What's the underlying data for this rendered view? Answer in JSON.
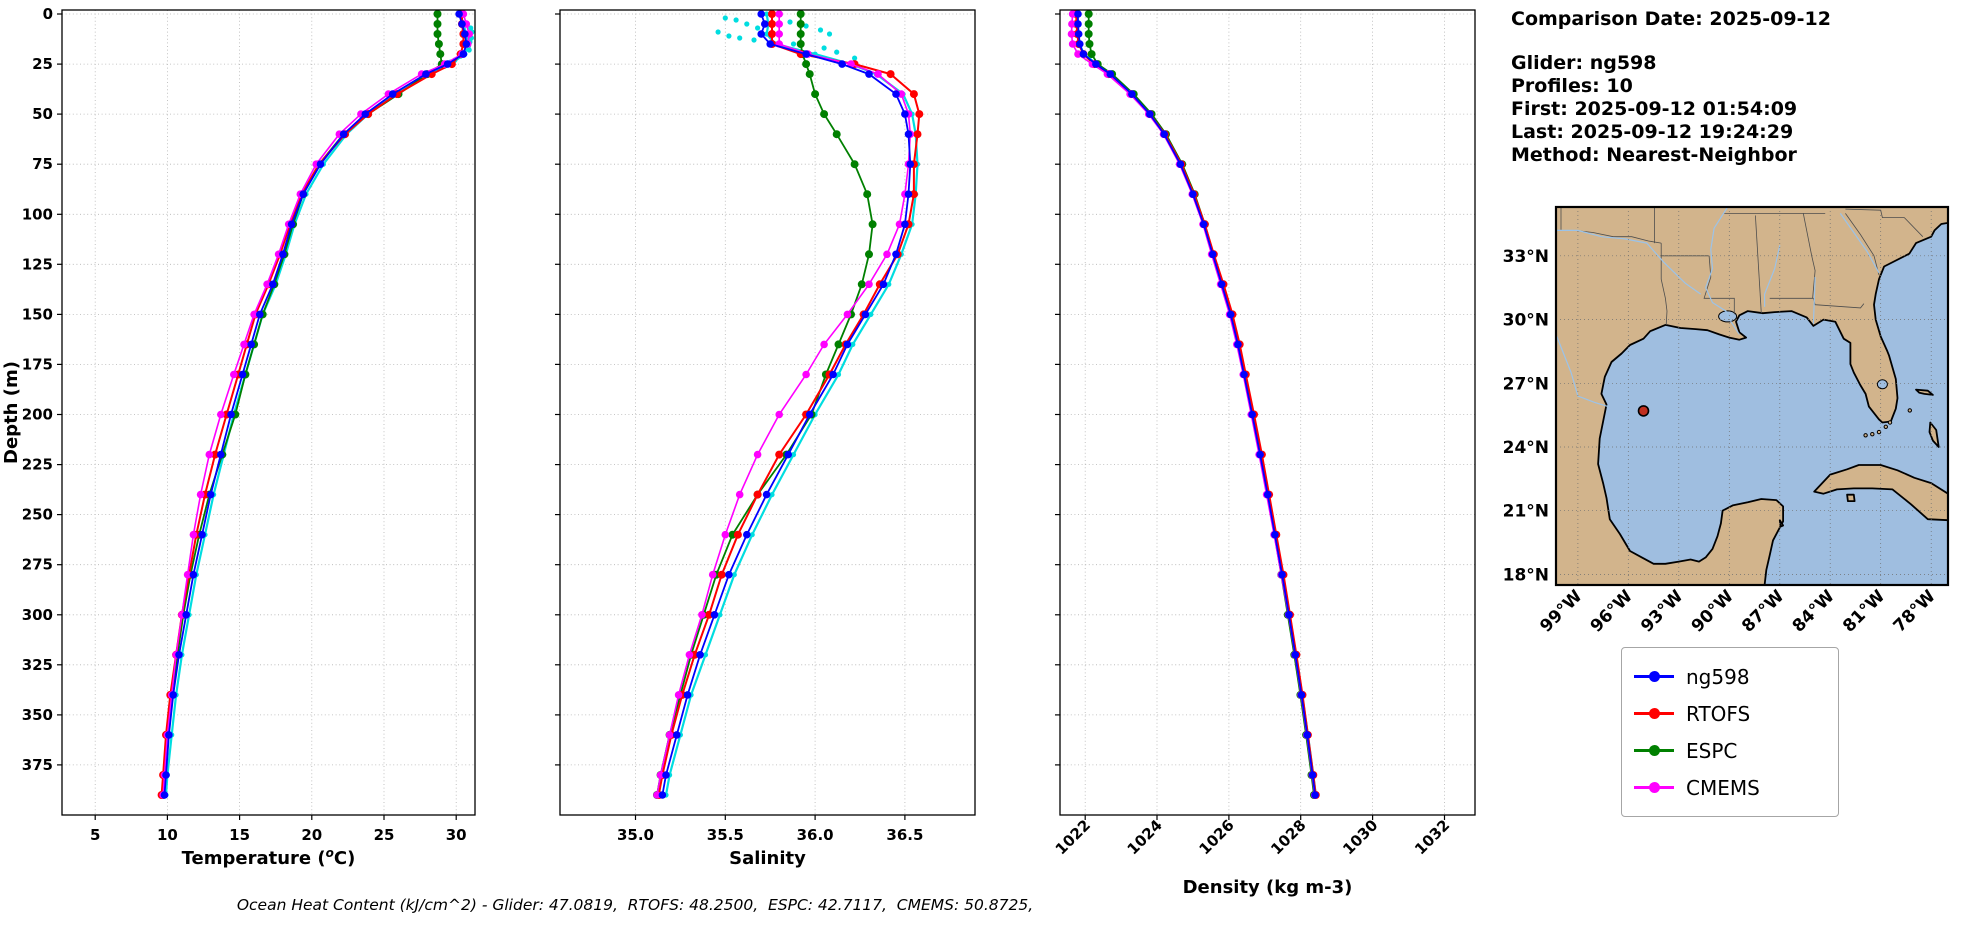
{
  "info": {
    "comparison_date": "Comparison Date: 2025-09-12",
    "glider": "Glider: ng598",
    "profiles": "Profiles: 10",
    "first": "First: 2025-09-12 01:54:09",
    "last": "Last: 2025-09-12 19:24:29",
    "method": "Method: Nearest-Neighbor"
  },
  "legend": {
    "items": [
      {
        "label": "ng598",
        "color": "#0000ff"
      },
      {
        "label": "RTOFS",
        "color": "#ff0000"
      },
      {
        "label": "ESPC",
        "color": "#008000"
      },
      {
        "label": "CMEMS",
        "color": "#ff00ff"
      }
    ]
  },
  "caption": {
    "text": "Ocean Heat Content (kJ/cm^2) - Glider: 47.0819,  RTOFS: 48.2500,  ESPC: 42.7117,  CMEMS: 50.8725,"
  },
  "ocean_heat_content": {
    "units": "kJ/cm^2",
    "glider": 47.0819,
    "rtofs": 48.25,
    "espc": 42.7117,
    "cmems": 50.8725
  },
  "map": {
    "extent": {
      "lon_min": -100.3,
      "lon_max": -77.0,
      "lat_min": 17.5,
      "lat_max": 35.3
    },
    "lat_ticks": [
      {
        "v": 33,
        "label": "33°N"
      },
      {
        "v": 30,
        "label": "30°N"
      },
      {
        "v": 27,
        "label": "27°N"
      },
      {
        "v": 24,
        "label": "24°N"
      },
      {
        "v": 21,
        "label": "21°N"
      },
      {
        "v": 18,
        "label": "18°N"
      }
    ],
    "lon_ticks": [
      {
        "v": -99,
        "label": "99°W"
      },
      {
        "v": -96,
        "label": "96°W"
      },
      {
        "v": -93,
        "label": "93°W"
      },
      {
        "v": -90,
        "label": "90°W"
      },
      {
        "v": -87,
        "label": "87°W"
      },
      {
        "v": -84,
        "label": "84°W"
      },
      {
        "v": -81,
        "label": "81°W"
      },
      {
        "v": -78,
        "label": "78°W"
      }
    ],
    "colors": {
      "land": "#d2b48c",
      "ocean": "#9fbee0",
      "coast": "#000000",
      "river": "#9cc3e8",
      "border": "#4d4d4d"
    },
    "marker": {
      "lon": -95.1,
      "lat": 25.7,
      "color": "#c03020",
      "edge": "#000000"
    }
  },
  "chart_data": [
    {
      "type": "line",
      "name": "temperature-profile",
      "xlabel_pre": "Temperature (",
      "xlabel_sup": "o",
      "xlabel_post": "C)",
      "ylabel": "Depth (m)",
      "grid": true,
      "xlim": [
        2.7,
        31.3
      ],
      "ylim": [
        0,
        400
      ],
      "xticks": [
        {
          "v": 5,
          "label": "5"
        },
        {
          "v": 10,
          "label": "10"
        },
        {
          "v": 15,
          "label": "15"
        },
        {
          "v": 20,
          "label": "20"
        },
        {
          "v": 25,
          "label": "25"
        },
        {
          "v": 30,
          "label": "30"
        }
      ],
      "yticks": [
        0,
        25,
        50,
        75,
        100,
        125,
        150,
        175,
        200,
        225,
        250,
        275,
        300,
        325,
        350,
        375
      ],
      "x": [
        0,
        5,
        10,
        15,
        20,
        25,
        30,
        40,
        50,
        60,
        75,
        90,
        105,
        120,
        135,
        150,
        165,
        180,
        200,
        220,
        240,
        260,
        280,
        300,
        320,
        340,
        360,
        380,
        390
      ],
      "series": [
        {
          "name": "glider-raw",
          "color": "#00dde0",
          "z": 1,
          "r": 2.6,
          "lw": 2.2,
          "values": [
            30.3,
            30.5,
            30.7,
            30.8,
            30.6,
            29.6,
            28.1,
            25.8,
            23.9,
            22.4,
            20.8,
            19.6,
            18.8,
            18.2,
            17.5,
            16.6,
            16.0,
            15.4,
            14.6,
            13.9,
            13.2,
            12.6,
            12.0,
            11.5,
            11.0,
            10.6,
            10.3,
            10.0,
            9.9
          ],
          "points": [
            [
              7,
              31.0
            ],
            [
              9,
              31.1
            ],
            [
              12,
              31.05
            ],
            [
              14,
              30.95
            ],
            [
              16,
              30.85
            ],
            [
              18,
              30.9
            ],
            [
              21,
              30.3
            ],
            [
              23,
              29.9
            ],
            [
              24,
              29.6
            ],
            [
              26,
              29.2
            ]
          ]
        },
        {
          "name": "ESPC",
          "color": "#008000",
          "z": 2,
          "r": 4,
          "lw": 1.8,
          "values": [
            28.7,
            28.7,
            28.7,
            28.8,
            28.9,
            29.0,
            28.0,
            26.0,
            23.9,
            22.2,
            20.5,
            19.4,
            18.7,
            18.1,
            17.4,
            16.6,
            16.0,
            15.4,
            14.7,
            13.8,
            12.9,
            12.2,
            11.6,
            11.1,
            10.7,
            10.3,
            10.0,
            9.8,
            9.7
          ]
        },
        {
          "name": "RTOFS",
          "color": "#ff0000",
          "z": 3,
          "r": 4,
          "lw": 2.0,
          "values": [
            30.4,
            30.4,
            30.5,
            30.5,
            30.3,
            29.7,
            28.3,
            25.9,
            23.9,
            22.3,
            20.5,
            19.3,
            18.5,
            17.8,
            17.0,
            16.1,
            15.5,
            14.9,
            14.1,
            13.3,
            12.6,
            12.0,
            11.5,
            11.0,
            10.6,
            10.2,
            9.9,
            9.7,
            9.6
          ]
        },
        {
          "name": "CMEMS",
          "color": "#ff00ff",
          "z": 4,
          "r": 3.8,
          "lw": 1.6,
          "values": [
            30.5,
            30.7,
            30.9,
            30.8,
            30.4,
            29.2,
            27.6,
            25.3,
            23.4,
            21.9,
            20.3,
            19.2,
            18.4,
            17.7,
            16.9,
            16.0,
            15.3,
            14.6,
            13.7,
            12.9,
            12.3,
            11.8,
            11.4,
            11.0,
            10.6,
            10.3,
            10.0,
            9.8,
            9.7
          ]
        },
        {
          "name": "ng598",
          "color": "#0000ff",
          "z": 5,
          "r": 3.8,
          "lw": 1.8,
          "values": [
            30.2,
            30.4,
            30.6,
            30.7,
            30.5,
            29.4,
            27.9,
            25.6,
            23.7,
            22.2,
            20.6,
            19.4,
            18.6,
            18.0,
            17.3,
            16.4,
            15.8,
            15.2,
            14.4,
            13.7,
            13.0,
            12.4,
            11.8,
            11.3,
            10.8,
            10.4,
            10.1,
            9.9,
            9.8
          ]
        }
      ]
    },
    {
      "type": "line",
      "name": "salinity-profile",
      "xlabel": "Salinity",
      "grid": true,
      "xlim": [
        34.58,
        36.89
      ],
      "ylim": [
        0,
        400
      ],
      "xticks": [
        {
          "v": 35.0,
          "label": "35.0"
        },
        {
          "v": 35.5,
          "label": "35.5"
        },
        {
          "v": 36.0,
          "label": "36.0"
        },
        {
          "v": 36.5,
          "label": "36.5"
        }
      ],
      "yticks": [
        0,
        25,
        50,
        75,
        100,
        125,
        150,
        175,
        200,
        225,
        250,
        275,
        300,
        325,
        350,
        375
      ],
      "x": [
        0,
        5,
        10,
        15,
        20,
        25,
        30,
        40,
        50,
        60,
        75,
        90,
        105,
        120,
        135,
        150,
        165,
        180,
        200,
        220,
        240,
        260,
        280,
        300,
        320,
        340,
        360,
        380,
        390
      ],
      "series": [
        {
          "name": "glider-raw",
          "color": "#00dde0",
          "z": 1,
          "r": 2.6,
          "lw": 2.2,
          "values": [
            35.73,
            35.74,
            35.73,
            35.78,
            36.0,
            36.2,
            36.34,
            36.49,
            36.54,
            36.56,
            36.57,
            36.56,
            36.54,
            36.48,
            36.41,
            36.31,
            36.21,
            36.13,
            36.0,
            35.88,
            35.76,
            35.65,
            35.55,
            35.47,
            35.39,
            35.31,
            35.25,
            35.19,
            35.17
          ],
          "points": [
            [
              2,
              35.5
            ],
            [
              3,
              35.56
            ],
            [
              5,
              35.62
            ],
            [
              7,
              35.68
            ],
            [
              4,
              35.86
            ],
            [
              6,
              35.95
            ],
            [
              8,
              36.03
            ],
            [
              10,
              36.08
            ],
            [
              12,
              35.58
            ],
            [
              13,
              35.66
            ],
            [
              15,
              35.88
            ],
            [
              17,
              36.05
            ],
            [
              19,
              36.12
            ],
            [
              22,
              36.22
            ],
            [
              9,
              35.46
            ],
            [
              11,
              35.52
            ]
          ]
        },
        {
          "name": "ESPC",
          "color": "#008000",
          "z": 2,
          "r": 4,
          "lw": 1.8,
          "values": [
            35.92,
            35.92,
            35.92,
            35.92,
            35.93,
            35.95,
            35.97,
            36.0,
            36.05,
            36.12,
            36.22,
            36.29,
            36.32,
            36.3,
            36.26,
            36.2,
            36.13,
            36.06,
            35.98,
            35.84,
            35.68,
            35.54,
            35.45,
            35.38,
            35.31,
            35.25,
            35.19,
            35.14,
            35.12
          ]
        },
        {
          "name": "RTOFS",
          "color": "#ff0000",
          "z": 3,
          "r": 4,
          "lw": 2.0,
          "values": [
            35.76,
            35.76,
            35.76,
            35.76,
            35.92,
            36.22,
            36.42,
            36.55,
            36.58,
            36.57,
            36.55,
            36.55,
            36.52,
            36.46,
            36.36,
            36.27,
            36.17,
            36.08,
            35.95,
            35.8,
            35.68,
            35.57,
            35.48,
            35.41,
            35.33,
            35.26,
            35.2,
            35.15,
            35.13
          ]
        },
        {
          "name": "CMEMS",
          "color": "#ff00ff",
          "z": 4,
          "r": 3.8,
          "lw": 1.6,
          "values": [
            35.8,
            35.8,
            35.8,
            35.8,
            35.96,
            36.2,
            36.35,
            36.48,
            36.52,
            36.53,
            36.52,
            36.5,
            36.47,
            36.4,
            36.3,
            36.18,
            36.05,
            35.95,
            35.8,
            35.68,
            35.58,
            35.5,
            35.43,
            35.37,
            35.3,
            35.24,
            35.19,
            35.14,
            35.12
          ]
        },
        {
          "name": "ng598",
          "color": "#0000ff",
          "z": 5,
          "r": 3.8,
          "lw": 1.8,
          "values": [
            35.7,
            35.72,
            35.7,
            35.75,
            35.95,
            36.15,
            36.3,
            36.45,
            36.5,
            36.52,
            36.53,
            36.52,
            36.5,
            36.45,
            36.38,
            36.28,
            36.18,
            36.1,
            35.97,
            35.85,
            35.73,
            35.62,
            35.52,
            35.44,
            35.36,
            35.29,
            35.23,
            35.17,
            35.15
          ]
        }
      ]
    },
    {
      "type": "line",
      "name": "density-profile",
      "xlabel": "Density (kg m-3)",
      "grid": true,
      "xlim": [
        1021.3,
        1032.85
      ],
      "ylim": [
        0,
        400
      ],
      "xticks": [
        {
          "v": 1022,
          "label": "1022"
        },
        {
          "v": 1024,
          "label": "1024"
        },
        {
          "v": 1026,
          "label": "1026"
        },
        {
          "v": 1028,
          "label": "1028"
        },
        {
          "v": 1030,
          "label": "1030"
        },
        {
          "v": 1032,
          "label": "1032"
        }
      ],
      "yticks": [
        0,
        25,
        50,
        75,
        100,
        125,
        150,
        175,
        200,
        225,
        250,
        275,
        300,
        325,
        350,
        375
      ],
      "x": [
        0,
        5,
        10,
        15,
        20,
        25,
        30,
        40,
        50,
        60,
        75,
        90,
        105,
        120,
        135,
        150,
        165,
        180,
        200,
        220,
        240,
        260,
        280,
        300,
        320,
        340,
        360,
        380,
        390
      ],
      "series": [
        {
          "name": "glider-raw",
          "color": "#00dde0",
          "z": 1,
          "r": 2.6,
          "lw": 2.2,
          "values": [
            1021.78,
            1021.79,
            1021.8,
            1021.84,
            1021.97,
            1022.32,
            1022.72,
            1023.32,
            1023.82,
            1024.22,
            1024.67,
            1025.02,
            1025.32,
            1025.57,
            1025.82,
            1026.07,
            1026.27,
            1026.44,
            1026.67,
            1026.89,
            1027.1,
            1027.3,
            1027.5,
            1027.69,
            1027.87,
            1028.04,
            1028.2,
            1028.35,
            1028.42
          ]
        },
        {
          "name": "ESPC",
          "color": "#008000",
          "z": 2,
          "r": 4,
          "lw": 1.8,
          "values": [
            1022.1,
            1022.1,
            1022.1,
            1022.12,
            1022.18,
            1022.35,
            1022.75,
            1023.35,
            1023.85,
            1024.25,
            1024.7,
            1025.05,
            1025.33,
            1025.57,
            1025.82,
            1026.07,
            1026.27,
            1026.45,
            1026.67,
            1026.88,
            1027.08,
            1027.27,
            1027.46,
            1027.64,
            1027.82,
            1027.99,
            1028.15,
            1028.3,
            1028.37
          ]
        },
        {
          "name": "RTOFS",
          "color": "#ff0000",
          "z": 3,
          "r": 4,
          "lw": 2.0,
          "values": [
            1021.75,
            1021.76,
            1021.78,
            1021.82,
            1021.95,
            1022.25,
            1022.65,
            1023.28,
            1023.8,
            1024.22,
            1024.68,
            1025.03,
            1025.33,
            1025.58,
            1025.85,
            1026.1,
            1026.3,
            1026.47,
            1026.7,
            1026.92,
            1027.12,
            1027.32,
            1027.52,
            1027.7,
            1027.88,
            1028.05,
            1028.2,
            1028.35,
            1028.42
          ]
        },
        {
          "name": "CMEMS",
          "color": "#ff00ff",
          "z": 4,
          "r": 3.8,
          "lw": 1.6,
          "values": [
            1021.65,
            1021.63,
            1021.62,
            1021.65,
            1021.8,
            1022.2,
            1022.62,
            1023.25,
            1023.77,
            1024.18,
            1024.63,
            1024.98,
            1025.28,
            1025.52,
            1025.77,
            1026.02,
            1026.22,
            1026.4,
            1026.62,
            1026.84,
            1027.05,
            1027.26,
            1027.46,
            1027.66,
            1027.84,
            1028.01,
            1028.17,
            1028.32,
            1028.39
          ]
        },
        {
          "name": "ng598",
          "color": "#0000ff",
          "z": 5,
          "r": 3.8,
          "lw": 1.8,
          "values": [
            1021.8,
            1021.8,
            1021.82,
            1021.85,
            1021.95,
            1022.3,
            1022.7,
            1023.3,
            1023.8,
            1024.2,
            1024.65,
            1025.0,
            1025.3,
            1025.55,
            1025.8,
            1026.05,
            1026.25,
            1026.42,
            1026.65,
            1026.87,
            1027.08,
            1027.28,
            1027.48,
            1027.67,
            1027.85,
            1028.02,
            1028.18,
            1028.33,
            1028.4
          ]
        }
      ]
    }
  ]
}
